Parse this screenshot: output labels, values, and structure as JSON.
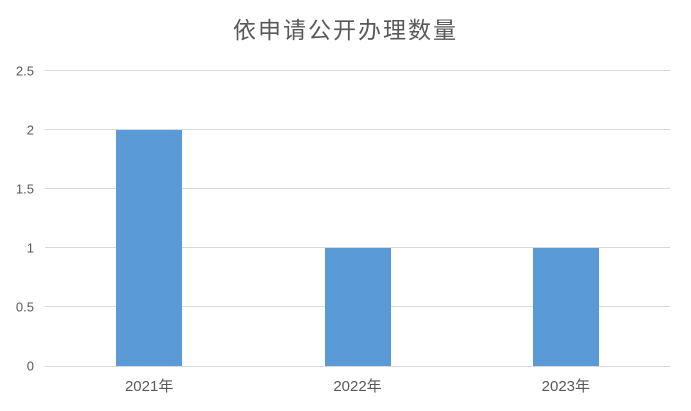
{
  "chart": {
    "title": "依申请公开办理数量"
  },
  "chart_data": {
    "type": "bar",
    "title": "依申请公开办理数量",
    "categories": [
      "2021年",
      "2022年",
      "2023年"
    ],
    "values": [
      2,
      1,
      1
    ],
    "series": [
      {
        "name": "依申请公开办理数量",
        "values": [
          2,
          1,
          1
        ]
      }
    ],
    "xlabel": "",
    "ylabel": "",
    "ylim": [
      0,
      2.5
    ],
    "yticks": [
      "0",
      "0.5",
      "1",
      "1.5",
      "2",
      "2.5"
    ],
    "ytick_values": [
      0,
      0.5,
      1,
      1.5,
      2,
      2.5
    ],
    "grid": true,
    "legend_position": "none",
    "colors": {
      "bar_fill": "#5B9BD5",
      "gridline": "#D9D9D9",
      "axis_line": "#D9D9D9",
      "title_text": "#595959",
      "tick_text": "#595959",
      "background": "#FFFFFF"
    }
  }
}
